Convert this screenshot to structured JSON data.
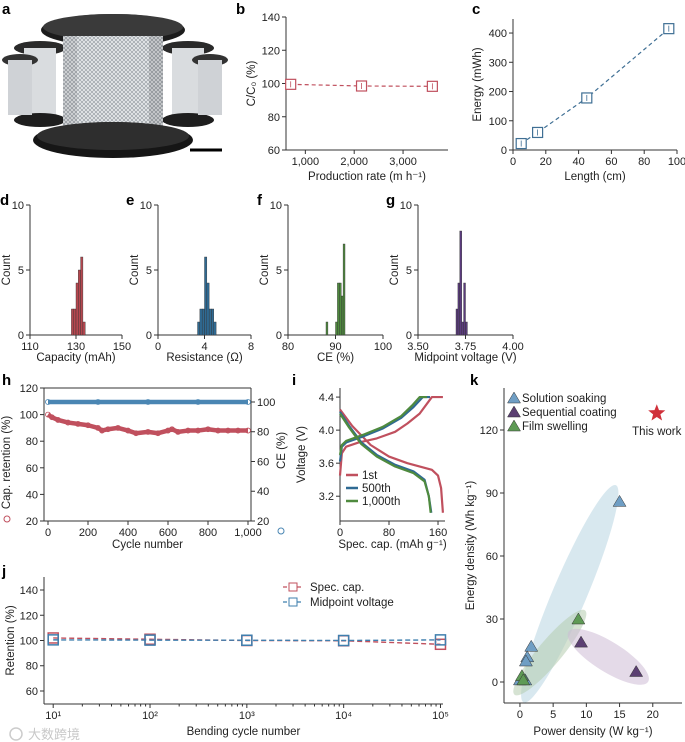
{
  "panel_a": {
    "letter": "a"
  },
  "watermark": "大数跨境",
  "chart_data": [
    {
      "panel": "b",
      "type": "line",
      "xlabel": "Production rate (m h⁻¹)",
      "ylabel": "C/C₀ (%)",
      "color": "#c0505e",
      "x": [
        700,
        2150,
        3600
      ],
      "y": [
        99.5,
        98.5,
        98.3
      ],
      "xlim": [
        604,
        3920
      ],
      "ylim": [
        60,
        140
      ],
      "x_ticks": [
        1000,
        2000,
        3000
      ],
      "x_tick_labels": [
        "1,000",
        "2,000",
        "3,000"
      ],
      "y_ticks": [
        60,
        80,
        100,
        120,
        140
      ],
      "y_tick_labels": [
        "60",
        "80",
        "100",
        "120",
        "140"
      ]
    },
    {
      "panel": "c",
      "type": "line",
      "xlabel": "Length (cm)",
      "ylabel": "Energy (mWh)",
      "color": "#3f6f94",
      "x": [
        5,
        15,
        45,
        95
      ],
      "y": [
        22,
        60,
        178,
        415
      ],
      "xlim": [
        0,
        100
      ],
      "ylim": [
        0,
        448
      ],
      "x_ticks": [
        0,
        20,
        40,
        60,
        80,
        100
      ],
      "x_tick_labels": [
        "0",
        "20",
        "40",
        "60",
        "80",
        "100"
      ],
      "y_ticks": [
        0,
        100,
        200,
        300,
        400
      ],
      "y_tick_labels": [
        "0",
        "100",
        "200",
        "300",
        "400"
      ]
    },
    {
      "panel": "d",
      "type": "bar",
      "subtype": "histogram",
      "xlabel": "Capacity (mAh)",
      "ylabel": "Count",
      "color": "#b5474f",
      "bin_left": [
        128,
        129,
        130,
        131,
        132,
        133
      ],
      "bin_width": 1,
      "counts": [
        2,
        2,
        4,
        5,
        6,
        1
      ],
      "xlim": [
        110,
        150
      ],
      "ylim": [
        0,
        10
      ],
      "x_ticks": [
        110,
        130,
        150
      ],
      "x_tick_labels": [
        "110",
        "130",
        "150"
      ],
      "y_ticks": [
        0,
        5,
        10
      ],
      "y_tick_labels": [
        "0",
        "5",
        "10"
      ]
    },
    {
      "panel": "e",
      "type": "bar",
      "subtype": "histogram",
      "xlabel": "Resistance (Ω)",
      "ylabel": "Count",
      "color": "#2f6a93",
      "bin_left": [
        3.4,
        3.6,
        3.8,
        4.0,
        4.2,
        4.4,
        4.6,
        4.8
      ],
      "bin_width": 0.2,
      "counts": [
        1,
        2,
        2,
        6,
        4,
        2,
        2,
        1
      ],
      "xlim": [
        0,
        8
      ],
      "ylim": [
        0,
        10
      ],
      "x_ticks": [
        0,
        4,
        8
      ],
      "x_tick_labels": [
        "0",
        "4",
        "8"
      ],
      "y_ticks": [
        0,
        5,
        10
      ],
      "y_tick_labels": [
        "0",
        "5",
        "10"
      ]
    },
    {
      "panel": "f",
      "type": "bar",
      "subtype": "histogram",
      "xlabel": "CE (%)",
      "ylabel": "Count",
      "color": "#4f8a3e",
      "bin_left": [
        88.0,
        90.0,
        90.4,
        90.8,
        91.2,
        91.6
      ],
      "bin_width": 0.4,
      "counts": [
        1,
        1,
        4,
        4,
        3,
        7
      ],
      "xlim": [
        80,
        100
      ],
      "ylim": [
        0,
        10
      ],
      "x_ticks": [
        80,
        90,
        100
      ],
      "x_tick_labels": [
        "80",
        "90",
        "100"
      ],
      "y_ticks": [
        0,
        5,
        10
      ],
      "y_tick_labels": [
        "0",
        "5",
        "10"
      ]
    },
    {
      "panel": "g",
      "type": "bar",
      "subtype": "histogram",
      "xlabel": "Midpoint voltage (V)",
      "ylabel": "Count",
      "color": "#5b3b7e",
      "bin_left": [
        3.7,
        3.71,
        3.72,
        3.73,
        3.74,
        3.75
      ],
      "bin_width": 0.01,
      "counts": [
        2,
        4,
        8,
        1,
        4,
        1
      ],
      "xlim": [
        3.5,
        4.0
      ],
      "ylim": [
        0,
        10
      ],
      "x_ticks": [
        3.5,
        3.75,
        4.0
      ],
      "x_tick_labels": [
        "3.50",
        "3.75",
        "4.00"
      ],
      "y_ticks": [
        0,
        5,
        10
      ],
      "y_tick_labels": [
        "0",
        "5",
        "10"
      ]
    },
    {
      "panel": "h",
      "type": "scatter",
      "xlabel": "Cycle number",
      "ylabel": "Cap. retention (%)",
      "y2label": "CE (%)",
      "xlim": [
        -20,
        1015
      ],
      "ylim": [
        20,
        120
      ],
      "y2lim": [
        20,
        109.4
      ],
      "x_ticks": [
        0,
        200,
        400,
        600,
        800,
        1000
      ],
      "x_tick_labels": [
        "0",
        "200",
        "400",
        "600",
        "800",
        "1,000"
      ],
      "y_ticks": [
        20,
        40,
        60,
        80,
        100,
        120
      ],
      "y_tick_labels": [
        "20",
        "40",
        "60",
        "80",
        "100",
        "120"
      ],
      "y2_ticks": [
        20,
        40,
        60,
        80,
        100
      ],
      "y2_tick_labels": [
        "20",
        "40",
        "60",
        "80",
        "100"
      ],
      "series": [
        {
          "name": "Cap. retention",
          "axis": "left",
          "color": "#c0505e",
          "x": [
            0,
            20,
            50,
            100,
            150,
            200,
            250,
            270,
            300,
            350,
            400,
            440,
            500,
            550,
            600,
            620,
            650,
            700,
            750,
            800,
            850,
            900,
            950,
            1000
          ],
          "y": [
            100,
            98,
            96,
            94,
            93,
            92,
            90,
            88,
            89,
            90,
            88,
            86,
            87,
            86,
            88,
            89,
            87,
            88,
            88,
            89,
            88,
            88,
            88,
            88
          ]
        },
        {
          "name": "CE",
          "axis": "right",
          "color": "#4a86b3",
          "x": [
            0,
            250,
            500,
            750,
            1000
          ],
          "y": [
            100,
            100,
            100,
            100,
            100
          ]
        }
      ]
    },
    {
      "panel": "i",
      "type": "line",
      "xlabel": "Spec. cap. (mAh g⁻¹)",
      "ylabel": "Voltage (V)",
      "xlim": [
        0,
        171.4
      ],
      "ylim": [
        2.9,
        4.51
      ],
      "x_ticks": [
        0,
        80,
        160
      ],
      "x_tick_labels": [
        "0",
        "80",
        "160"
      ],
      "y_ticks": [
        3.2,
        3.6,
        4.0,
        4.4
      ],
      "y_tick_labels": [
        "3.2",
        "3.6",
        "4.0",
        "4.4"
      ],
      "series": [
        {
          "name": "1st",
          "color": "#c0505e",
          "charge": [
            [
              0,
              3.45
            ],
            [
              3,
              3.72
            ],
            [
              10,
              3.8
            ],
            [
              30,
              3.85
            ],
            [
              60,
              3.9
            ],
            [
              90,
              3.98
            ],
            [
              110,
              4.08
            ],
            [
              130,
              4.2
            ],
            [
              150,
              4.4
            ],
            [
              168,
              4.4
            ]
          ],
          "discharge": [
            [
              0,
              4.25
            ],
            [
              20,
              4.05
            ],
            [
              50,
              3.82
            ],
            [
              80,
              3.68
            ],
            [
              110,
              3.6
            ],
            [
              150,
              3.52
            ],
            [
              160,
              3.45
            ],
            [
              165,
              3.3
            ],
            [
              168,
              3.0
            ]
          ]
        },
        {
          "name": "500th",
          "color": "#2f6a93",
          "charge": [
            [
              0,
              3.62
            ],
            [
              3,
              3.8
            ],
            [
              10,
              3.85
            ],
            [
              40,
              3.93
            ],
            [
              70,
              4.02
            ],
            [
              100,
              4.15
            ],
            [
              120,
              4.28
            ],
            [
              135,
              4.4
            ],
            [
              147,
              4.4
            ]
          ],
          "discharge": [
            [
              0,
              4.22
            ],
            [
              15,
              4.05
            ],
            [
              35,
              3.85
            ],
            [
              60,
              3.7
            ],
            [
              90,
              3.58
            ],
            [
              120,
              3.5
            ],
            [
              138,
              3.4
            ],
            [
              145,
              3.2
            ],
            [
              149,
              3.0
            ]
          ]
        },
        {
          "name": "1,000th",
          "color": "#4f8a3e",
          "charge": [
            [
              0,
              3.7
            ],
            [
              3,
              3.82
            ],
            [
              10,
              3.87
            ],
            [
              40,
              3.95
            ],
            [
              70,
              4.04
            ],
            [
              100,
              4.17
            ],
            [
              118,
              4.3
            ],
            [
              130,
              4.4
            ],
            [
              142,
              4.4
            ]
          ],
          "discharge": [
            [
              0,
              4.2
            ],
            [
              15,
              4.03
            ],
            [
              35,
              3.83
            ],
            [
              60,
              3.68
            ],
            [
              90,
              3.56
            ],
            [
              120,
              3.48
            ],
            [
              138,
              3.38
            ],
            [
              145,
              3.2
            ],
            [
              148,
              3.0
            ]
          ]
        }
      ]
    },
    {
      "panel": "j",
      "type": "line",
      "xscale": "log",
      "xlabel": "Bending cycle number",
      "ylabel": "Retention (%)",
      "xlim": [
        0.905,
        5.026
      ],
      "ylim": [
        49.7,
        150.3
      ],
      "x_ticks": [
        10,
        100,
        1000,
        10000,
        100000
      ],
      "x_tick_labels": [
        "10¹",
        "10²",
        "10³",
        "10⁴",
        "10⁵"
      ],
      "y_ticks": [
        60,
        80,
        100,
        120,
        140
      ],
      "y_tick_labels": [
        "60",
        "80",
        "100",
        "120",
        "140"
      ],
      "legend": "top-right",
      "series": [
        {
          "name": "Spec. cap.",
          "color": "#c0505e",
          "x": [
            10,
            100,
            1000,
            10000,
            100000
          ],
          "y": [
            102,
            101,
            100,
            99.8,
            97
          ]
        },
        {
          "name": "Midpoint voltage",
          "color": "#3f7fae",
          "x": [
            10,
            100,
            1000,
            10000,
            100000
          ],
          "y": [
            100.5,
            100.3,
            100.2,
            100,
            100.5
          ]
        }
      ]
    },
    {
      "panel": "k",
      "type": "scatter",
      "xlabel": "Power density (W kg⁻¹)",
      "ylabel": "Energy density (Wh kg⁻¹)",
      "xlim": [
        -2.4,
        24.4
      ],
      "ylim": [
        -10,
        140
      ],
      "x_ticks": [
        0,
        5,
        10,
        15,
        20
      ],
      "x_tick_labels": [
        "0",
        "5",
        "10",
        "15",
        "20"
      ],
      "y_ticks": [
        0,
        30,
        60,
        90,
        120
      ],
      "y_tick_labels": [
        "0",
        "30",
        "60",
        "90",
        "120"
      ],
      "legend": "top-left",
      "series": [
        {
          "name": "Solution soaking",
          "color": "#6f9ec4",
          "x": [
            15,
            1.7,
            1.1,
            0.9,
            0.2,
            0.0,
            0.8
          ],
          "y": [
            86,
            17,
            12,
            10,
            2,
            1,
            1
          ]
        },
        {
          "name": "Sequential coating",
          "color": "#5b3f72",
          "x": [
            9.2,
            17.5
          ],
          "y": [
            19,
            5
          ]
        },
        {
          "name": "Film swelling",
          "color": "#5e9a55",
          "x": [
            8.8,
            0.3,
            0.5
          ],
          "y": [
            30,
            3,
            1
          ]
        }
      ],
      "highlight": {
        "name": "This work",
        "x": 20.6,
        "y": 128,
        "color": "#d0303a"
      }
    }
  ]
}
